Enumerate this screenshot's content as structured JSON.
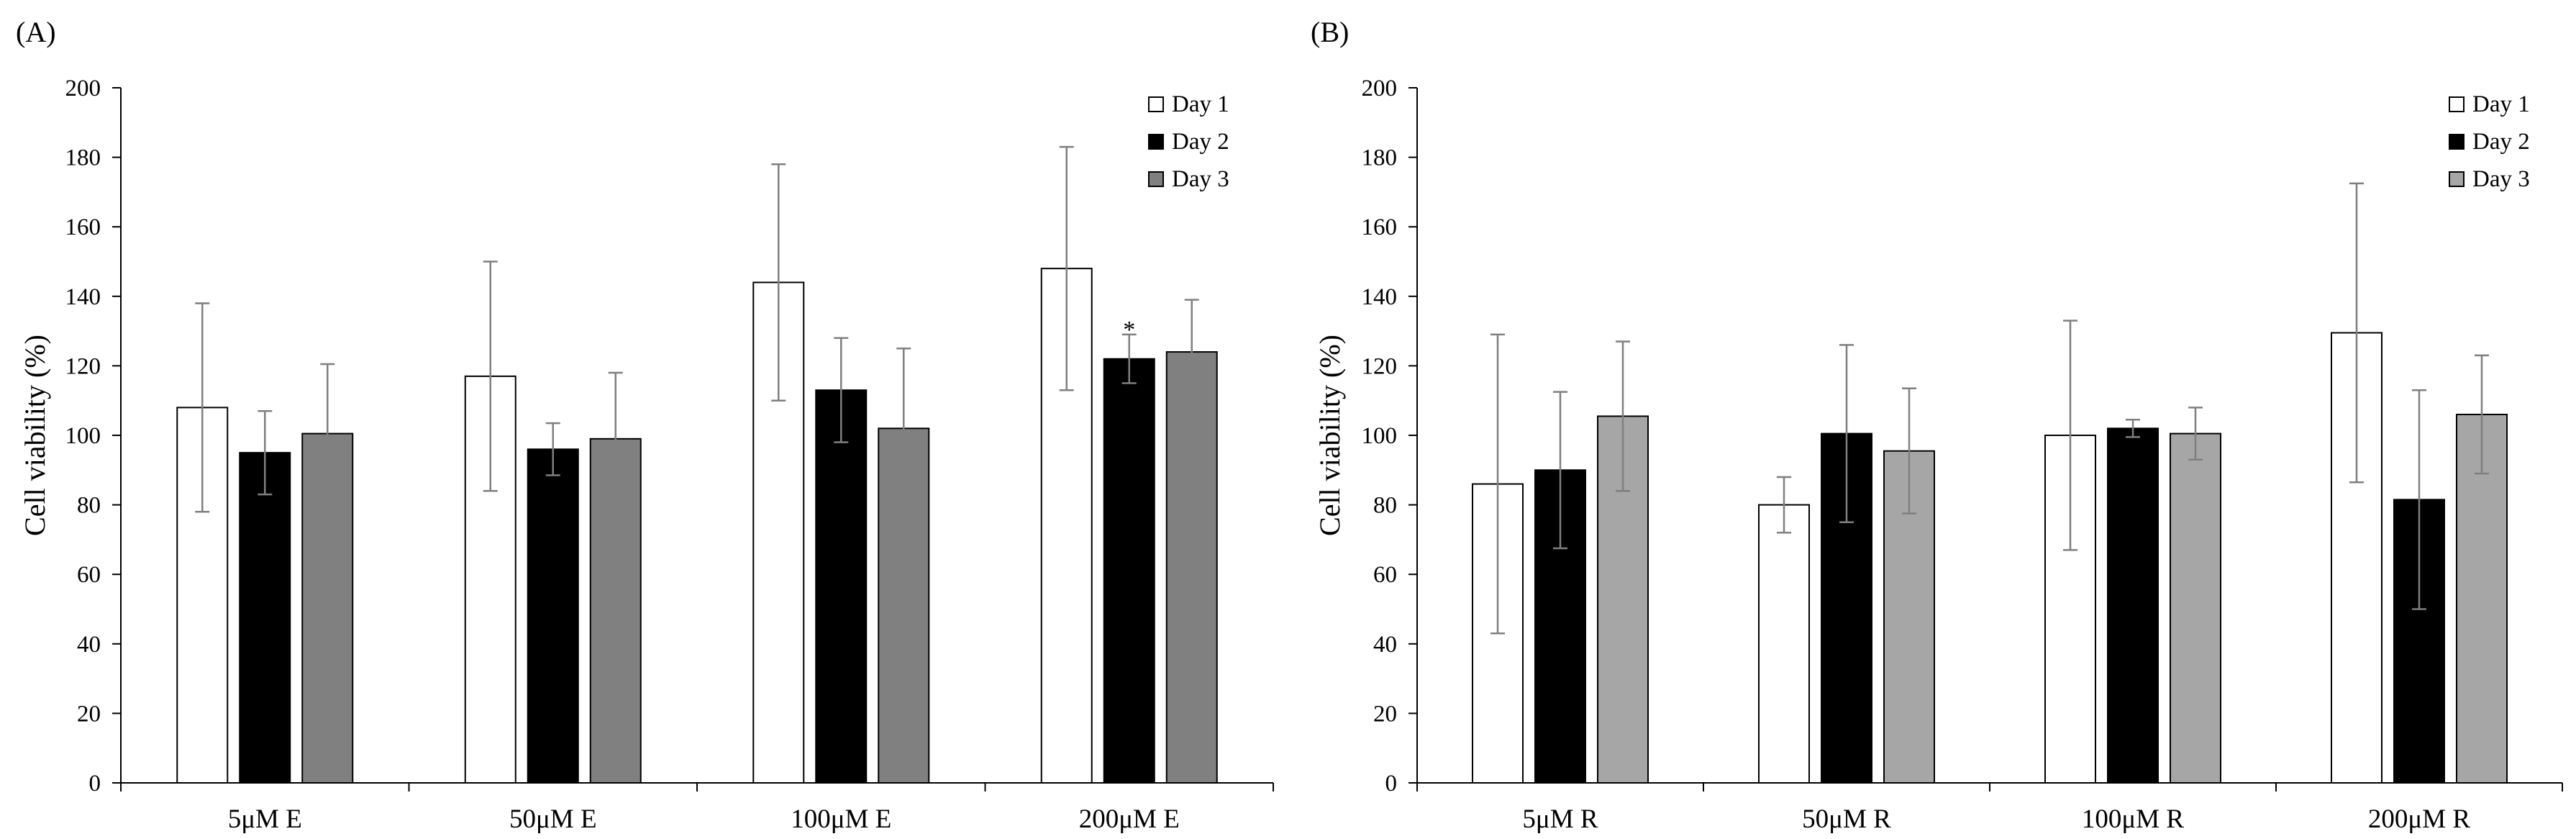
{
  "chart_data": [
    {
      "type": "bar",
      "panel_label": "(A)",
      "ylabel": "Cell viability  (%)",
      "xlabel": "",
      "ylim": [
        0,
        200
      ],
      "yticks": [
        0,
        20,
        40,
        60,
        80,
        100,
        120,
        140,
        160,
        180,
        200
      ],
      "categories": [
        "5μM E",
        "50μM E",
        "100μM E",
        "200μM E"
      ],
      "series": [
        {
          "name": "Day 1",
          "color": "#ffffff",
          "values": [
            108,
            117,
            144,
            148
          ],
          "errors": [
            30,
            33,
            34,
            35
          ]
        },
        {
          "name": "Day 2",
          "color": "#000000",
          "values": [
            95,
            96,
            113,
            122
          ],
          "errors": [
            12,
            7.5,
            15,
            7
          ]
        },
        {
          "name": "Day 3",
          "color": "#808080",
          "values": [
            100.5,
            99,
            102,
            124
          ],
          "errors": [
            20,
            19,
            23,
            15
          ]
        }
      ],
      "annotations": [
        {
          "text": "*",
          "category": "200μM E",
          "series": "Day 2"
        }
      ],
      "legend": "top-right"
    },
    {
      "type": "bar",
      "panel_label": "(B)",
      "ylabel": "Cell viability  (%)",
      "xlabel": "",
      "ylim": [
        0,
        200
      ],
      "yticks": [
        0,
        20,
        40,
        60,
        80,
        100,
        120,
        140,
        160,
        180,
        200
      ],
      "categories": [
        "5μM R",
        "50μM R",
        "100μM R",
        "200μM R"
      ],
      "series": [
        {
          "name": "Day 1",
          "color": "#ffffff",
          "values": [
            86,
            80,
            100,
            129.5
          ],
          "errors": [
            43,
            8,
            33,
            43
          ]
        },
        {
          "name": "Day 2",
          "color": "#000000",
          "values": [
            90,
            100.5,
            102,
            81.5
          ],
          "errors": [
            22.5,
            25.5,
            2.5,
            31.5
          ]
        },
        {
          "name": "Day 3",
          "color": "#a6a6a6",
          "values": [
            105.5,
            95.5,
            100.5,
            106
          ],
          "errors": [
            21.5,
            18,
            7.5,
            17
          ]
        }
      ],
      "annotations": [],
      "legend": "top-right"
    }
  ]
}
